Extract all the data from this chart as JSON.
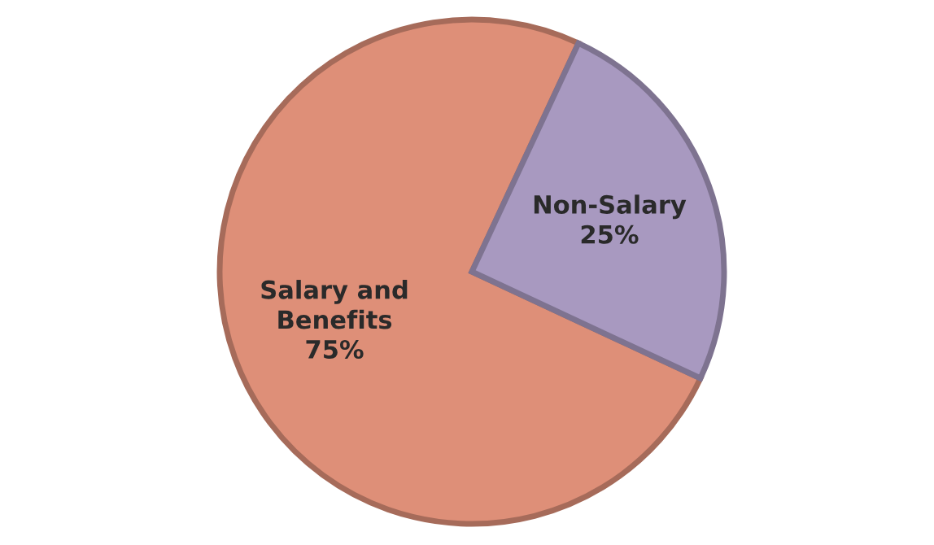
{
  "chart_data": {
    "type": "pie",
    "categories": [
      "Salary and\nBenefits",
      "Non-Salary"
    ],
    "values": [
      75,
      25
    ],
    "value_labels": [
      "75%",
      "25%"
    ],
    "colors": [
      "#de8f78",
      "#a899c0"
    ],
    "legend": false
  }
}
